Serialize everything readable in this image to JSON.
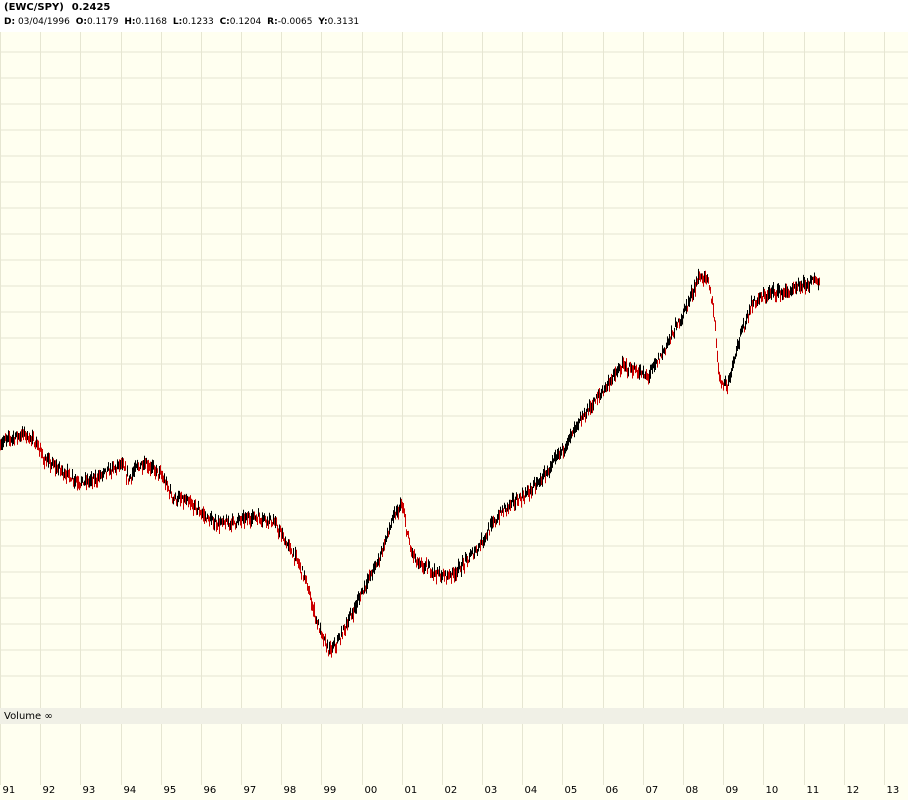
{
  "header": {
    "symbol": "(EWC/SPY)",
    "last_value": "0.2425",
    "info": {
      "d_label": "D:",
      "d_value": "03/04/1996",
      "o_label": "O:",
      "o_value": "0.1179",
      "h_label": "H:",
      "h_value": "0.1168",
      "l_label": "L:",
      "l_value": "0.1233",
      "c_label": "C:",
      "c_value": "0.1204",
      "r_label": "R:",
      "r_value": "-0.0065",
      "y_label": "Y:",
      "y_value": "0.3131"
    }
  },
  "volume_panel": {
    "label": "Volume ∞"
  },
  "colors": {
    "background": "#fffff0",
    "header_bg": "#ffffff",
    "grid": "#e6e6d2",
    "volume_separator": "#f0f0e6",
    "up_bar": "#000000",
    "down_bar": "#cc0000"
  },
  "chart_data": {
    "type": "line",
    "subtype": "ohlc-bars",
    "title": "(EWC/SPY)",
    "x_tick_labels": [
      "91",
      "92",
      "93",
      "94",
      "95",
      "96",
      "97",
      "98",
      "99",
      "00",
      "01",
      "02",
      "03",
      "04",
      "05",
      "06",
      "07",
      "08",
      "09",
      "10",
      "11",
      "12",
      "13"
    ],
    "xlim": [
      1991.0,
      2013.6
    ],
    "ylim": [
      0.04,
      0.4
    ],
    "grid": true,
    "legend": "none",
    "series": [
      {
        "x": [
          1991.0,
          1991.3,
          1991.6,
          1991.9,
          1992.1,
          1992.4,
          1992.7,
          1993.0,
          1993.3,
          1993.6,
          1993.9,
          1994.0,
          1994.2,
          1994.4,
          1994.6,
          1994.8,
          1995.0,
          1995.3,
          1995.6,
          1995.9,
          1996.2,
          1996.5,
          1996.8,
          1997.0,
          1997.3,
          1997.6,
          1997.8,
          1998.0,
          1998.2,
          1998.4,
          1998.6,
          1998.8,
          1999.0,
          1999.2,
          1999.4,
          1999.6,
          1999.8,
          2000.0,
          2000.2,
          2000.4,
          2000.6,
          2000.8,
          2001.0,
          2001.2,
          2001.4,
          2001.7,
          2002.0,
          2002.3,
          2002.6,
          2002.9,
          2003.2,
          2003.5,
          2003.8,
          2004.1,
          2004.4,
          2004.7,
          2005.0,
          2005.3,
          2005.6,
          2005.9,
          2006.2,
          2006.5,
          2006.8,
          2007.1,
          2007.4,
          2007.7,
          2008.0,
          2008.2,
          2008.4,
          2008.6,
          2008.75,
          2008.9,
          2009.1,
          2009.3,
          2009.5,
          2009.7,
          2009.9,
          2010.1,
          2010.3,
          2010.5,
          2010.7,
          2010.9,
          2011.1,
          2011.3,
          2011.4
        ],
        "y": [
          0.181,
          0.184,
          0.186,
          0.181,
          0.172,
          0.168,
          0.164,
          0.16,
          0.161,
          0.165,
          0.168,
          0.17,
          0.162,
          0.168,
          0.171,
          0.167,
          0.164,
          0.152,
          0.15,
          0.146,
          0.14,
          0.138,
          0.139,
          0.14,
          0.142,
          0.141,
          0.139,
          0.132,
          0.125,
          0.118,
          0.108,
          0.092,
          0.078,
          0.07,
          0.075,
          0.084,
          0.092,
          0.102,
          0.11,
          0.118,
          0.13,
          0.142,
          0.148,
          0.125,
          0.116,
          0.114,
          0.11,
          0.112,
          0.118,
          0.126,
          0.136,
          0.145,
          0.15,
          0.154,
          0.16,
          0.168,
          0.178,
          0.188,
          0.198,
          0.206,
          0.215,
          0.222,
          0.22,
          0.216,
          0.226,
          0.238,
          0.25,
          0.26,
          0.27,
          0.268,
          0.253,
          0.215,
          0.212,
          0.23,
          0.243,
          0.255,
          0.258,
          0.26,
          0.262,
          0.261,
          0.262,
          0.264,
          0.266,
          0.268,
          0.266
        ]
      }
    ]
  }
}
